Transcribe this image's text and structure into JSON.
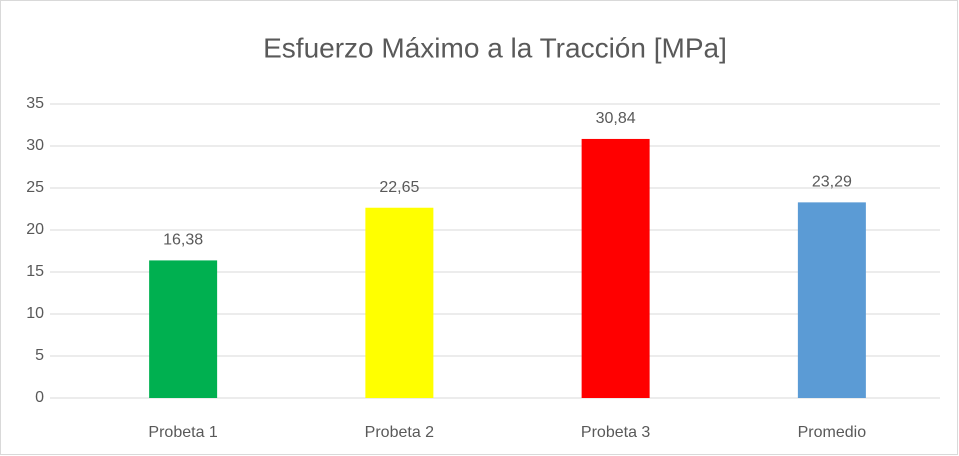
{
  "chart_data": {
    "type": "bar",
    "title": "Esfuerzo Máximo a la Tracción [MPa]",
    "categories": [
      "Probeta 1",
      "Probeta 2",
      "Probeta 3",
      "Promedio"
    ],
    "values": [
      16.38,
      22.65,
      30.84,
      23.29
    ],
    "value_labels": [
      "16,38",
      "22,65",
      "30,84",
      "23,29"
    ],
    "colors": [
      "#00b050",
      "#ffff00",
      "#ff0000",
      "#5b9bd5"
    ],
    "ylim": [
      0,
      35
    ],
    "yticks": [
      0,
      5,
      10,
      15,
      20,
      25,
      30,
      35
    ],
    "grid": true
  }
}
